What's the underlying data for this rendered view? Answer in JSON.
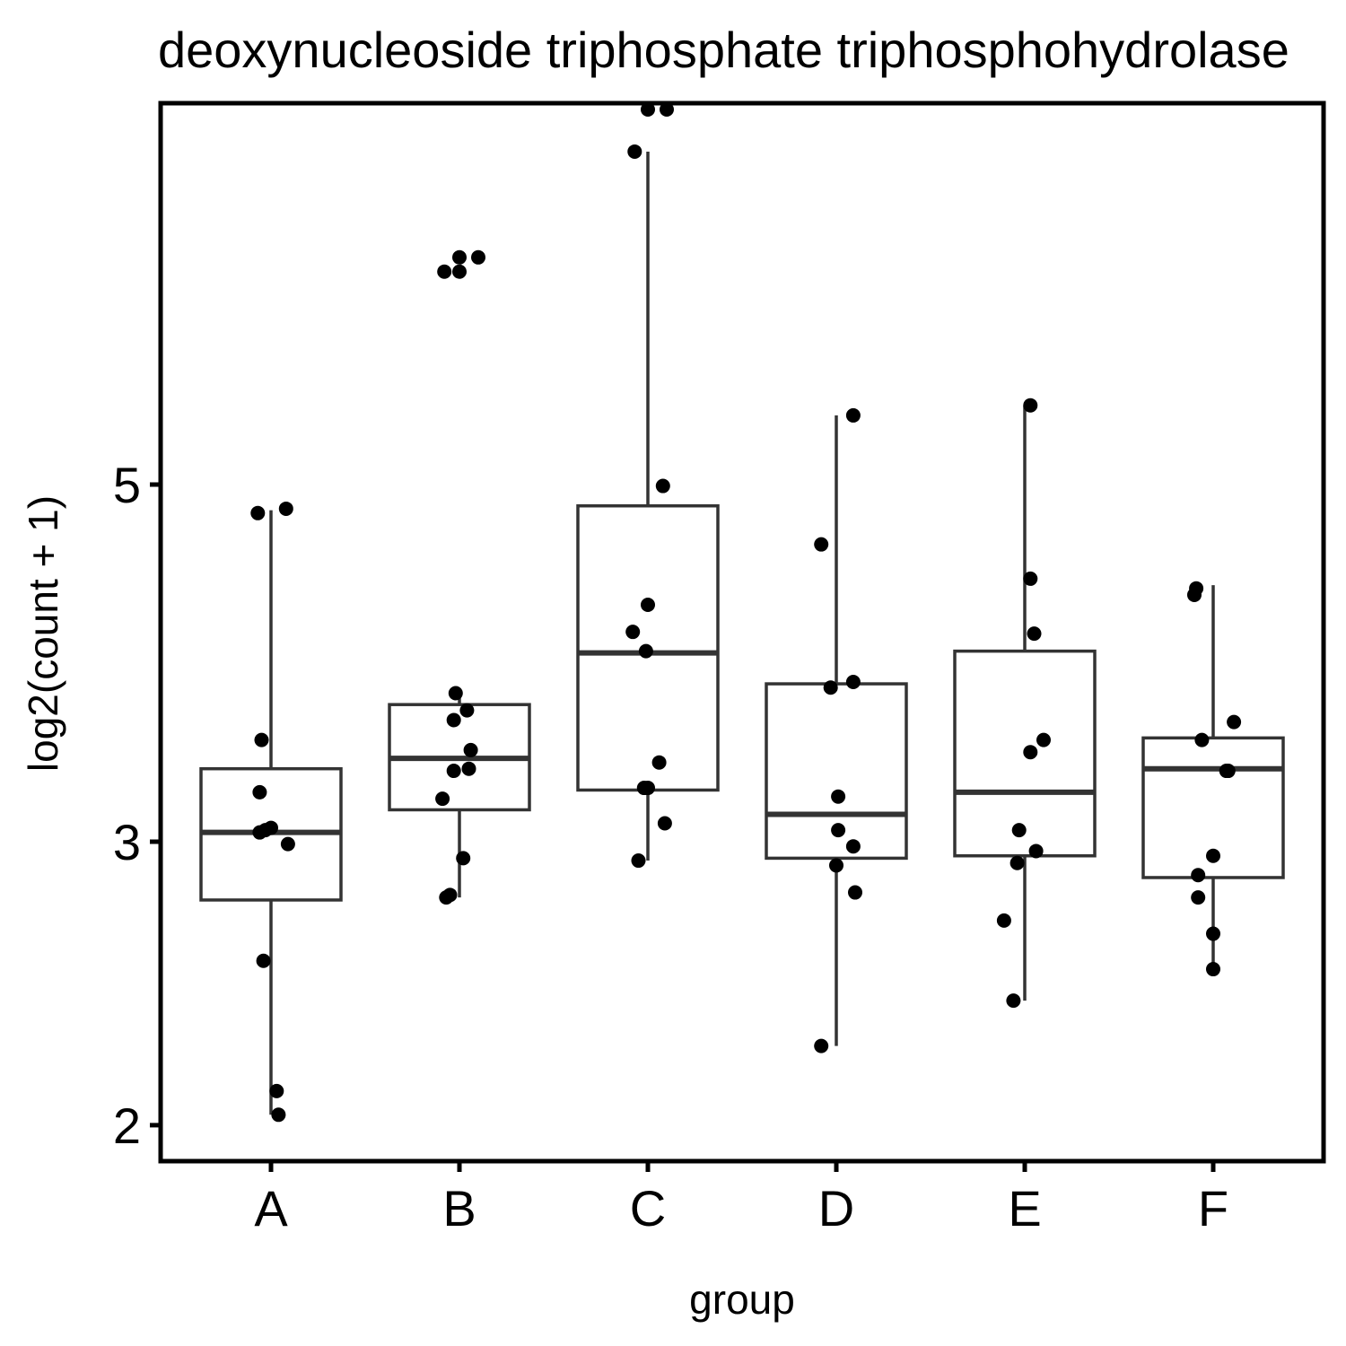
{
  "chart_data": {
    "type": "boxplot",
    "title": "deoxynucleoside triphosphate triphosphohydrolase",
    "xlabel": "group",
    "ylabel": "log2(count + 1)",
    "y_scale": "log",
    "y_ticks": [
      2,
      3,
      5
    ],
    "ylim": [
      1.92,
      9.3
    ],
    "grid": false,
    "legend": "none",
    "colors": {
      "box": "#333333",
      "points": "#000000",
      "axis": "#000000"
    },
    "categories": [
      "A",
      "B",
      "C",
      "D",
      "E",
      "F"
    ],
    "boxes": [
      {
        "group": "A",
        "whisker_low": 2.03,
        "q1": 2.76,
        "median": 3.04,
        "q3": 3.33,
        "whisker_high": 4.82
      },
      {
        "group": "B",
        "whisker_low": 2.77,
        "q1": 3.14,
        "median": 3.38,
        "q3": 3.65,
        "whisker_high": 3.71
      },
      {
        "group": "C",
        "whisker_low": 2.92,
        "q1": 3.23,
        "median": 3.93,
        "q3": 4.85,
        "whisker_high": 8.05
      },
      {
        "group": "D",
        "whisker_low": 2.24,
        "q1": 2.93,
        "median": 3.12,
        "q3": 3.76,
        "whisker_high": 5.52
      },
      {
        "group": "E",
        "whisker_low": 2.39,
        "q1": 2.94,
        "median": 3.22,
        "q3": 3.94,
        "whisker_high": 5.6
      },
      {
        "group": "F",
        "whisker_low": 2.5,
        "q1": 2.85,
        "median": 3.33,
        "q3": 3.48,
        "whisker_high": 4.33
      }
    ],
    "points": [
      {
        "group": "A",
        "x_offset": -0.07,
        "y": 4.8
      },
      {
        "group": "A",
        "x_offset": 0.08,
        "y": 4.83
      },
      {
        "group": "A",
        "x_offset": -0.05,
        "y": 3.47
      },
      {
        "group": "A",
        "x_offset": -0.06,
        "y": 3.22
      },
      {
        "group": "A",
        "x_offset": -0.06,
        "y": 3.04
      },
      {
        "group": "A",
        "x_offset": -0.03,
        "y": 3.05
      },
      {
        "group": "A",
        "x_offset": 0.0,
        "y": 3.06
      },
      {
        "group": "A",
        "x_offset": 0.09,
        "y": 2.99
      },
      {
        "group": "A",
        "x_offset": -0.04,
        "y": 2.53
      },
      {
        "group": "A",
        "x_offset": 0.03,
        "y": 2.1
      },
      {
        "group": "A",
        "x_offset": 0.04,
        "y": 2.03
      },
      {
        "group": "B",
        "x_offset": 0.0,
        "y": 6.78
      },
      {
        "group": "B",
        "x_offset": 0.0,
        "y": 6.92
      },
      {
        "group": "B",
        "x_offset": 0.1,
        "y": 6.92
      },
      {
        "group": "B",
        "x_offset": -0.08,
        "y": 6.78
      },
      {
        "group": "B",
        "x_offset": -0.02,
        "y": 3.71
      },
      {
        "group": "B",
        "x_offset": 0.04,
        "y": 3.62
      },
      {
        "group": "B",
        "x_offset": -0.03,
        "y": 3.57
      },
      {
        "group": "B",
        "x_offset": 0.06,
        "y": 3.42
      },
      {
        "group": "B",
        "x_offset": -0.03,
        "y": 3.32
      },
      {
        "group": "B",
        "x_offset": 0.05,
        "y": 3.33
      },
      {
        "group": "B",
        "x_offset": -0.09,
        "y": 3.19
      },
      {
        "group": "B",
        "x_offset": 0.02,
        "y": 2.93
      },
      {
        "group": "B",
        "x_offset": -0.07,
        "y": 2.77
      },
      {
        "group": "B",
        "x_offset": -0.05,
        "y": 2.78
      },
      {
        "group": "C",
        "x_offset": 0.0,
        "y": 8.55
      },
      {
        "group": "C",
        "x_offset": 0.1,
        "y": 8.55
      },
      {
        "group": "C",
        "x_offset": -0.07,
        "y": 8.05
      },
      {
        "group": "C",
        "x_offset": 0.08,
        "y": 4.99
      },
      {
        "group": "C",
        "x_offset": 0.0,
        "y": 4.21
      },
      {
        "group": "C",
        "x_offset": -0.08,
        "y": 4.05
      },
      {
        "group": "C",
        "x_offset": -0.01,
        "y": 3.94
      },
      {
        "group": "C",
        "x_offset": 0.06,
        "y": 3.36
      },
      {
        "group": "C",
        "x_offset": -0.02,
        "y": 3.24
      },
      {
        "group": "C",
        "x_offset": 0.0,
        "y": 3.24
      },
      {
        "group": "C",
        "x_offset": 0.09,
        "y": 3.08
      },
      {
        "group": "C",
        "x_offset": -0.05,
        "y": 2.92
      },
      {
        "group": "D",
        "x_offset": 0.09,
        "y": 5.52
      },
      {
        "group": "D",
        "x_offset": -0.08,
        "y": 4.59
      },
      {
        "group": "D",
        "x_offset": -0.03,
        "y": 3.74
      },
      {
        "group": "D",
        "x_offset": 0.09,
        "y": 3.77
      },
      {
        "group": "D",
        "x_offset": 0.01,
        "y": 3.2
      },
      {
        "group": "D",
        "x_offset": 0.01,
        "y": 3.05
      },
      {
        "group": "D",
        "x_offset": 0.09,
        "y": 2.98
      },
      {
        "group": "D",
        "x_offset": 0.0,
        "y": 2.9
      },
      {
        "group": "D",
        "x_offset": 0.1,
        "y": 2.79
      },
      {
        "group": "D",
        "x_offset": -0.08,
        "y": 2.24
      },
      {
        "group": "E",
        "x_offset": 0.03,
        "y": 5.6
      },
      {
        "group": "E",
        "x_offset": 0.03,
        "y": 4.37
      },
      {
        "group": "E",
        "x_offset": 0.05,
        "y": 4.04
      },
      {
        "group": "E",
        "x_offset": 0.1,
        "y": 3.47
      },
      {
        "group": "E",
        "x_offset": 0.03,
        "y": 3.41
      },
      {
        "group": "E",
        "x_offset": -0.03,
        "y": 3.05
      },
      {
        "group": "E",
        "x_offset": 0.06,
        "y": 2.96
      },
      {
        "group": "E",
        "x_offset": -0.04,
        "y": 2.91
      },
      {
        "group": "E",
        "x_offset": -0.11,
        "y": 2.68
      },
      {
        "group": "E",
        "x_offset": -0.06,
        "y": 2.39
      },
      {
        "group": "F",
        "x_offset": -0.09,
        "y": 4.31
      },
      {
        "group": "F",
        "x_offset": -0.1,
        "y": 4.27
      },
      {
        "group": "F",
        "x_offset": 0.11,
        "y": 3.56
      },
      {
        "group": "F",
        "x_offset": -0.06,
        "y": 3.47
      },
      {
        "group": "F",
        "x_offset": 0.07,
        "y": 3.32
      },
      {
        "group": "F",
        "x_offset": 0.08,
        "y": 3.32
      },
      {
        "group": "F",
        "x_offset": 0.0,
        "y": 2.94
      },
      {
        "group": "F",
        "x_offset": -0.08,
        "y": 2.86
      },
      {
        "group": "F",
        "x_offset": -0.08,
        "y": 2.77
      },
      {
        "group": "F",
        "x_offset": 0.0,
        "y": 2.63
      },
      {
        "group": "F",
        "x_offset": 0.0,
        "y": 2.5
      }
    ]
  }
}
